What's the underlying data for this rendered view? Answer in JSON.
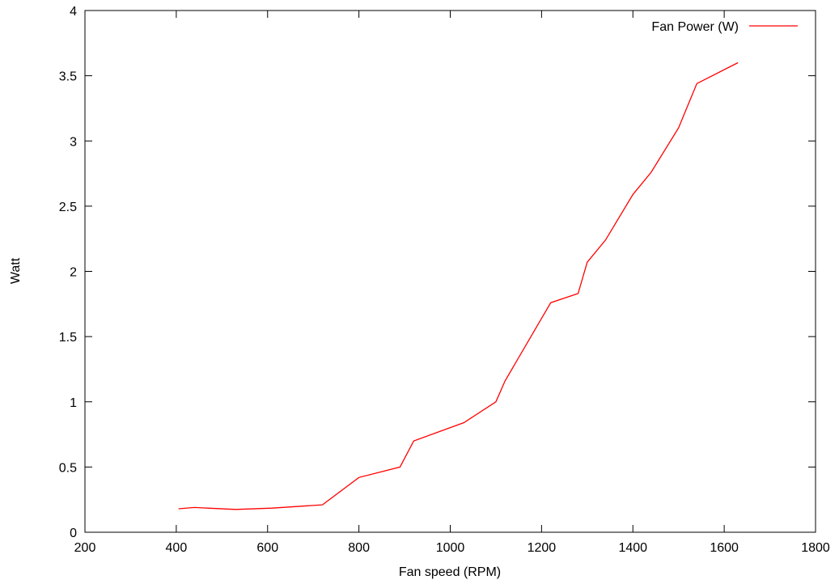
{
  "colors": {
    "series": "#ff0000",
    "axis": "#000000",
    "background": "#ffffff"
  },
  "chart_data": {
    "type": "line",
    "title": "",
    "xlabel": "Fan speed (RPM)",
    "ylabel": "Watt",
    "xlim": [
      200,
      1800
    ],
    "ylim": [
      0,
      4
    ],
    "xticks": [
      200,
      400,
      600,
      800,
      1000,
      1200,
      1400,
      1600,
      1800
    ],
    "yticks": [
      0,
      0.5,
      1,
      1.5,
      2,
      2.5,
      3,
      3.5,
      4
    ],
    "xtick_labels": [
      "200",
      "400",
      "600",
      "800",
      "1000",
      "1200",
      "1400",
      "1600",
      "1800"
    ],
    "ytick_labels": [
      "0",
      "0.5",
      "1",
      "1.5",
      "2",
      "2.5",
      "3",
      "3.5",
      "4"
    ],
    "grid": false,
    "legend_position": "top-right",
    "series": [
      {
        "name": "Fan Power (W)",
        "color": "#ff0000",
        "x": [
          405,
          440,
          530,
          610,
          720,
          800,
          890,
          920,
          1030,
          1100,
          1120,
          1220,
          1280,
          1300,
          1340,
          1400,
          1440,
          1500,
          1540,
          1630
        ],
        "y": [
          0.18,
          0.19,
          0.175,
          0.185,
          0.21,
          0.42,
          0.5,
          0.7,
          0.84,
          1.0,
          1.16,
          1.76,
          1.83,
          2.07,
          2.24,
          2.59,
          2.76,
          3.1,
          3.44,
          3.6
        ]
      }
    ]
  }
}
